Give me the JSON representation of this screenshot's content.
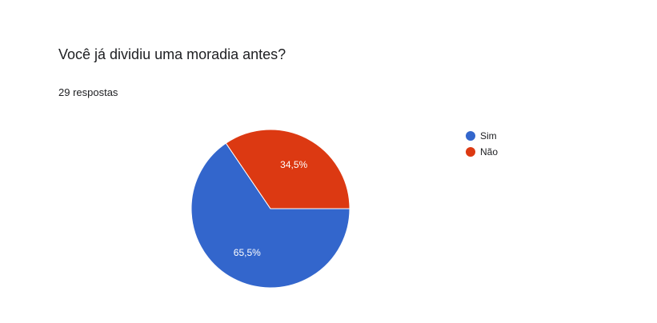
{
  "question": {
    "title": "Você já dividiu uma moradia antes?",
    "response_count": "29 respostas"
  },
  "chart_data": {
    "type": "pie",
    "title": "Você já dividiu uma moradia antes?",
    "subtitle": "29 respostas",
    "categories": [
      "Sim",
      "Não"
    ],
    "values": [
      65.5,
      34.5
    ],
    "labels": [
      "65,5%",
      "34,5%"
    ],
    "colors": [
      "#3366cc",
      "#dc3912"
    ],
    "legend_position": "right"
  }
}
